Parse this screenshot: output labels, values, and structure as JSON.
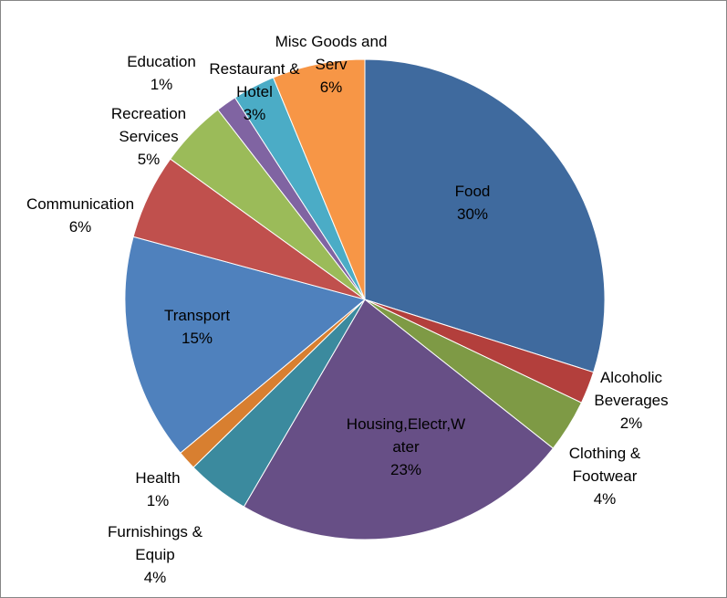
{
  "chart_data": {
    "type": "pie",
    "title": "",
    "legend": "none",
    "slices": [
      {
        "name": "Food",
        "label_lines": [
          "Food"
        ],
        "percent_label": "30%",
        "value": 30.2,
        "color": "#3F6A9E"
      },
      {
        "name": "Alcoholic Beverages",
        "label_lines": [
          "Alcoholic",
          "Beverages"
        ],
        "percent_label": "2%",
        "value": 2.2,
        "color": "#B33F3C"
      },
      {
        "name": "Clothing & Footwear",
        "label_lines": [
          "Clothing &",
          "Footwear"
        ],
        "percent_label": "4%",
        "value": 3.6,
        "color": "#7E9A45"
      },
      {
        "name": "Housing,Electr,Water",
        "label_lines": [
          "Housing,Electr,W",
          "ater"
        ],
        "percent_label": "23%",
        "value": 23.0,
        "color": "#674F86"
      },
      {
        "name": "Furnishings & Equip",
        "label_lines": [
          "Furnishings &",
          "Equip"
        ],
        "percent_label": "4%",
        "value": 4.3,
        "color": "#3B8A9E"
      },
      {
        "name": "Health",
        "label_lines": [
          "Health"
        ],
        "percent_label": "1%",
        "value": 1.3,
        "color": "#D87F30"
      },
      {
        "name": "Transport",
        "label_lines": [
          "Transport"
        ],
        "percent_label": "15%",
        "value": 15.4,
        "color": "#4F81BD"
      },
      {
        "name": "Communication",
        "label_lines": [
          "Communication"
        ],
        "percent_label": "6%",
        "value": 5.8,
        "color": "#C0504D"
      },
      {
        "name": "Recreation Services",
        "label_lines": [
          "Recreation",
          "Services"
        ],
        "percent_label": "5%",
        "value": 4.6,
        "color": "#9BBB59"
      },
      {
        "name": "Education",
        "label_lines": [
          "Education"
        ],
        "percent_label": "1%",
        "value": 1.4,
        "color": "#8064A2"
      },
      {
        "name": "Restaurant & Hotel",
        "label_lines": [
          "Restaurant &",
          "Hotel"
        ],
        "percent_label": "3%",
        "value": 2.9,
        "color": "#4BACC6"
      },
      {
        "name": "Misc Goods and Serv",
        "label_lines": [
          "Misc Goods and",
          "Serv"
        ],
        "percent_label": "6%",
        "value": 6.3,
        "color": "#F79646"
      }
    ]
  }
}
